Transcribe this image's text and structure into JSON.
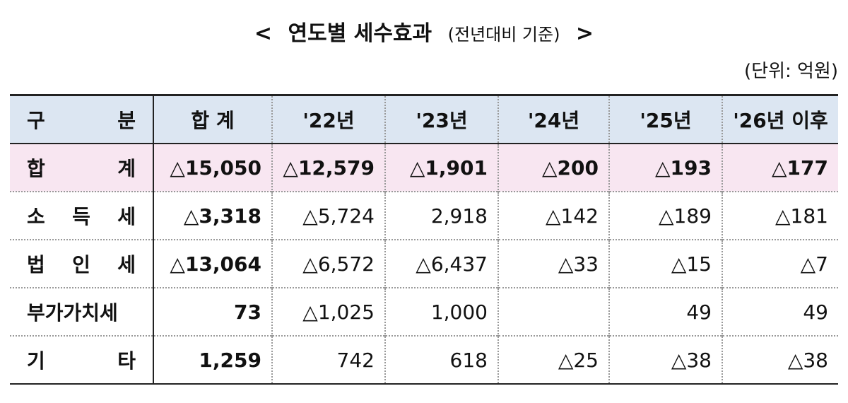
{
  "title": {
    "open": "<",
    "main": "연도별 세수효과",
    "note": "(전년대비 기준)",
    "close": ">"
  },
  "unit": "(단위: 억원)",
  "table": {
    "header": [
      "구 분",
      "합 계",
      "'22년",
      "'23년",
      "'24년",
      "'25년",
      "'26년 이후"
    ],
    "rows": [
      [
        "합 계",
        "△15,050",
        "△12,579",
        "△1,901",
        "△200",
        "△193",
        "△177"
      ],
      [
        "소 득 세",
        "△3,318",
        "△5,724",
        "2,918",
        "△142",
        "△189",
        "△181"
      ],
      [
        "법 인 세",
        "△13,064",
        "△6,572",
        "△6,437",
        "△33",
        "△15",
        "△7"
      ],
      [
        "부가가치세",
        "73",
        "△1,025",
        "1,000",
        null,
        "49",
        "49"
      ],
      [
        "기 타",
        "1,259",
        "742",
        "618",
        "△25",
        "△38",
        "△38"
      ]
    ]
  }
}
